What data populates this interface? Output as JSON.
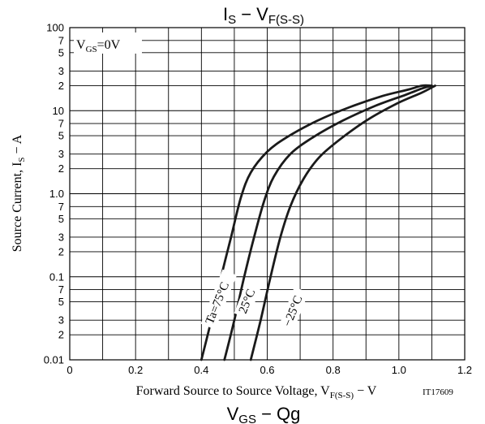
{
  "header_title": {
    "main": "I",
    "sub1": "S",
    "dash": " − V",
    "sub2": "F(S-S)"
  },
  "footer_title": {
    "main": "V",
    "sub1": "GS",
    "rest": " − Qg"
  },
  "code": "IT17609",
  "condition": {
    "main": "V",
    "sub": "GS",
    "rest": "=0V"
  },
  "colors": {
    "line": "#1a1a1a",
    "grid": "#000000",
    "background": "#ffffff"
  },
  "chart_data": {
    "type": "line",
    "title": "IS − VF(S-S)",
    "xlabel": {
      "pre": "Forward Source to Source Voltage, V",
      "sub": "F(S-S)",
      "post": " − V"
    },
    "ylabel": {
      "pre": "Source Current, I",
      "sub": "S",
      "post": " − A"
    },
    "xlim": [
      0,
      1.2
    ],
    "ylim": [
      0.01,
      100
    ],
    "yscale": "log",
    "grid": true,
    "x_ticks": [
      0,
      0.2,
      0.4,
      0.6,
      0.8,
      1.0,
      1.2
    ],
    "x_tick_labels": [
      "0",
      "0.2",
      "0.4",
      "0.6",
      "0.8",
      "1.0",
      "1.2"
    ],
    "y_decade_labels": [
      {
        "v": 0.01,
        "t": "0.01"
      },
      {
        "v": 0.1,
        "t": "0.1"
      },
      {
        "v": 1,
        "t": "1.0"
      },
      {
        "v": 10,
        "t": "10"
      },
      {
        "v": 100,
        "t": "100"
      }
    ],
    "y_minor_labels": [
      "2",
      "3",
      "5",
      "7"
    ],
    "series": [
      {
        "name": "Ta=75°C",
        "x": [
          0.4,
          0.43,
          0.46,
          0.49,
          0.52,
          0.55,
          0.6,
          0.66,
          0.75,
          0.85,
          0.95,
          1.03,
          1.07,
          1.1
        ],
        "y": [
          0.01,
          0.03,
          0.1,
          0.3,
          0.9,
          1.8,
          3.2,
          4.8,
          7.5,
          11,
          15,
          18,
          20,
          20
        ]
      },
      {
        "name": "25°C",
        "x": [
          0.47,
          0.5,
          0.53,
          0.56,
          0.59,
          0.62,
          0.67,
          0.74,
          0.83,
          0.93,
          1.02,
          1.07,
          1.1
        ],
        "y": [
          0.01,
          0.03,
          0.1,
          0.3,
          0.8,
          1.6,
          3.0,
          4.8,
          7.6,
          11.5,
          15.5,
          18.5,
          20
        ]
      },
      {
        "name": "−25°C",
        "x": [
          0.55,
          0.58,
          0.61,
          0.64,
          0.67,
          0.71,
          0.76,
          0.83,
          0.91,
          1.0,
          1.07,
          1.11
        ],
        "y": [
          0.01,
          0.03,
          0.1,
          0.3,
          0.7,
          1.5,
          2.8,
          4.8,
          8.0,
          12.5,
          16.5,
          20
        ]
      }
    ],
    "annotations": [
      "Ta=75°C",
      "25°C",
      "−25°C"
    ]
  }
}
